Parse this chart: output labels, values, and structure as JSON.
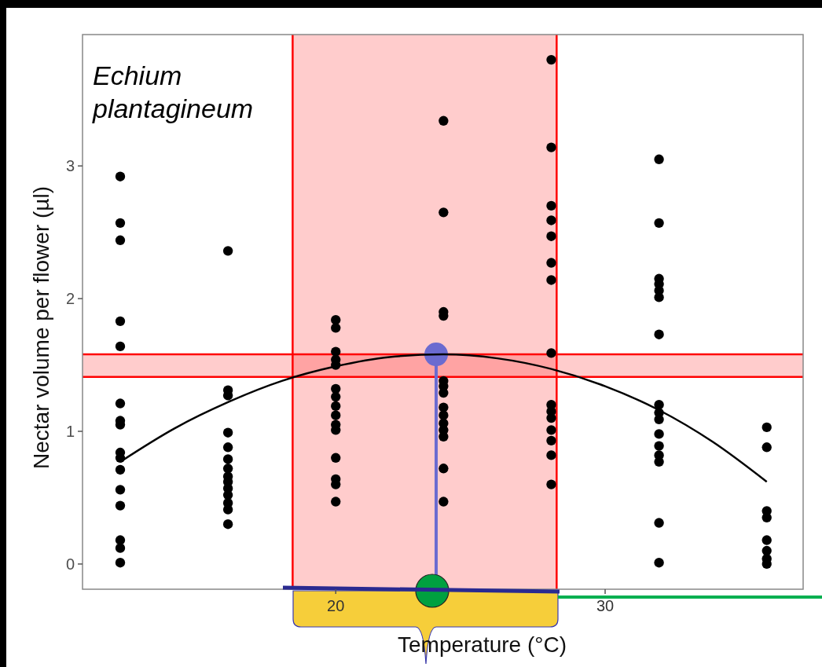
{
  "chart_data": {
    "type": "scatter",
    "xlabel": "Temperature (°C)",
    "ylabel": "Nectar volume per flower (µl)",
    "annotations": [
      "Echium plantagineum"
    ],
    "xlim": [
      10.6,
      37.35
    ],
    "ylim": [
      -0.19,
      3.99
    ],
    "xticks": [
      20,
      30
    ],
    "yticks": [
      0,
      1,
      2,
      3
    ],
    "grid": false,
    "marker": "circle",
    "series": [
      {
        "type": "scatter",
        "color": "#000000",
        "x": [
          12,
          12,
          12,
          12,
          12,
          12,
          12,
          12,
          12,
          12,
          12,
          12,
          12,
          12,
          12,
          12,
          16,
          16,
          16,
          16,
          16,
          16,
          16,
          16,
          16,
          16,
          16,
          16,
          16,
          16,
          20,
          20,
          20,
          20,
          20,
          20,
          20,
          20,
          20,
          20,
          20,
          20,
          20,
          20,
          20,
          24,
          24,
          24,
          24,
          24,
          24,
          24,
          24,
          24,
          24,
          24,
          24,
          24,
          24,
          28,
          28,
          28,
          28,
          28,
          28,
          28,
          28,
          28,
          28,
          28,
          28,
          28,
          28,
          28,
          32,
          32,
          32,
          32,
          32,
          32,
          32,
          32,
          32,
          32,
          32,
          32,
          32,
          32,
          32,
          32,
          36,
          36,
          36,
          36,
          36,
          36,
          36,
          36
        ],
        "values": [
          2.92,
          2.57,
          2.44,
          1.83,
          1.64,
          1.21,
          1.08,
          1.05,
          0.84,
          0.8,
          0.71,
          0.56,
          0.44,
          0.18,
          0.12,
          0.01,
          2.36,
          1.31,
          1.27,
          0.99,
          0.88,
          0.79,
          0.72,
          0.66,
          0.62,
          0.57,
          0.52,
          0.46,
          0.41,
          0.3,
          1.84,
          1.78,
          1.6,
          1.54,
          1.5,
          1.32,
          1.26,
          1.19,
          1.12,
          1.05,
          1.01,
          0.8,
          0.64,
          0.6,
          0.47,
          3.34,
          2.65,
          1.9,
          1.87,
          1.38,
          1.34,
          1.29,
          1.18,
          1.12,
          1.06,
          1.01,
          0.96,
          0.72,
          0.47,
          3.8,
          3.14,
          2.7,
          2.59,
          2.47,
          2.27,
          2.14,
          1.59,
          1.2,
          1.15,
          1.1,
          1.01,
          0.93,
          0.82,
          0.6,
          3.05,
          2.57,
          2.15,
          2.11,
          2.06,
          2.01,
          1.73,
          1.2,
          1.14,
          1.09,
          0.98,
          0.89,
          0.82,
          0.77,
          0.31,
          0.01,
          1.03,
          0.88,
          0.4,
          0.35,
          0.18,
          0.1,
          0.04,
          0.0
        ]
      },
      {
        "type": "line",
        "color": "#000000",
        "marker": "none",
        "x": [
          12,
          14,
          16,
          18,
          20,
          22,
          24,
          26,
          28,
          30,
          32,
          34,
          36
        ],
        "values": [
          0.77,
          1.02,
          1.22,
          1.38,
          1.49,
          1.56,
          1.58,
          1.55,
          1.47,
          1.34,
          1.16,
          0.92,
          0.62
        ]
      }
    ],
    "bands": [
      {
        "axis": "x",
        "from": 18.4,
        "to": 28.2,
        "color": "#ff0000"
      },
      {
        "axis": "y",
        "from": 1.41,
        "to": 1.58,
        "color": "#ff0000"
      }
    ],
    "ref_lines": [
      {
        "axis": "x",
        "value": 18.4,
        "color": "#ff0000"
      },
      {
        "axis": "x",
        "value": 28.2,
        "color": "#ff0000"
      },
      {
        "axis": "y",
        "value": 1.41,
        "color": "#ff0000"
      },
      {
        "axis": "y",
        "value": 1.58,
        "color": "#ff0000"
      }
    ]
  }
}
